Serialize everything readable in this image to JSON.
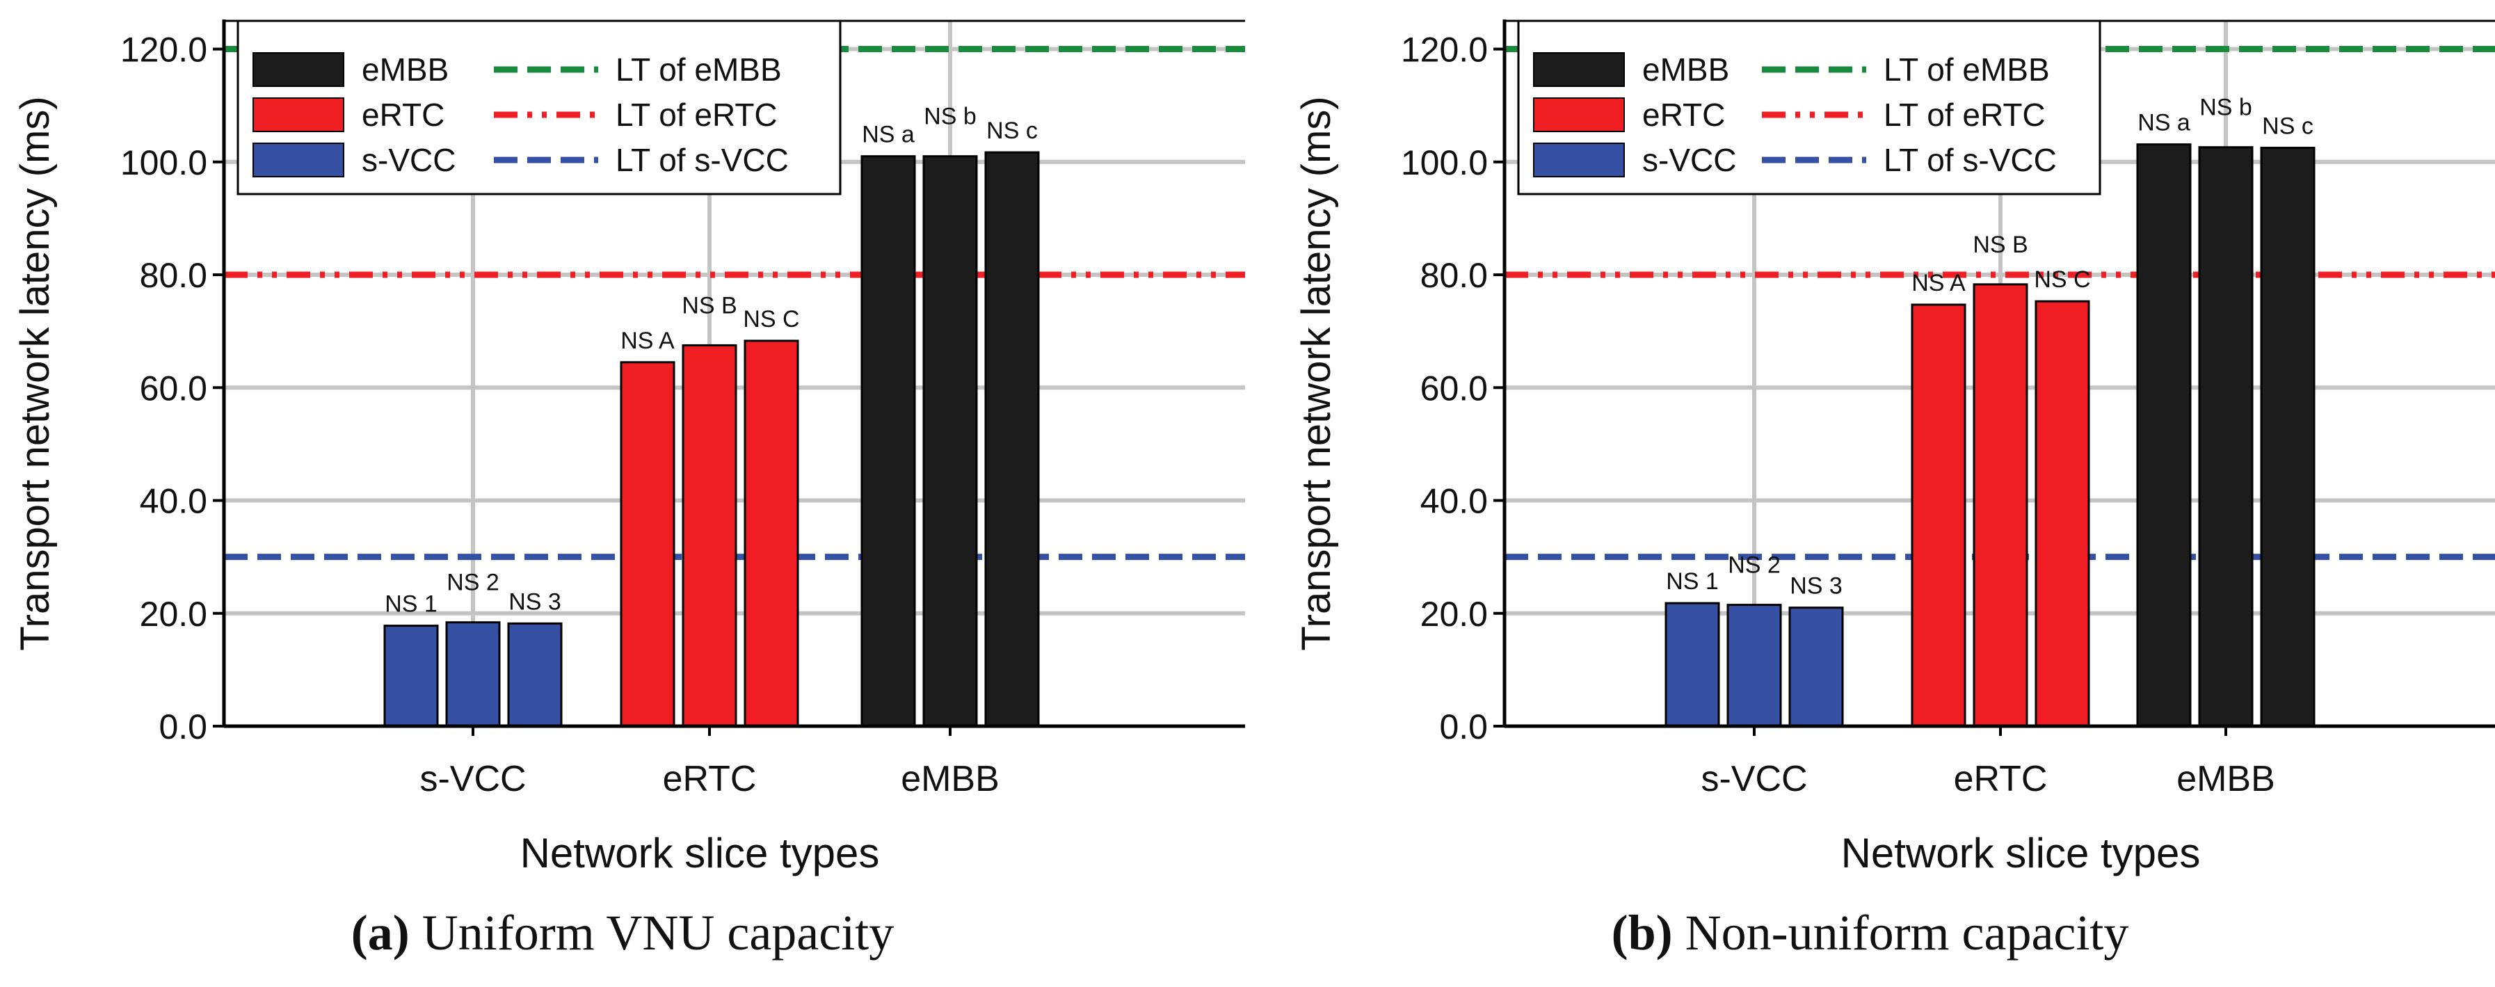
{
  "colors": {
    "eMBB": "#1c1c1c",
    "eRTC": "#ef1f24",
    "s-VCC": "#3651a4",
    "lt_eMBB": "#1a8a3c",
    "lt_eRTC": "#ef1f24",
    "lt_sVCC": "#3651a4",
    "grid": "#c4c4c4",
    "axis": "#000000",
    "text": "#111111"
  },
  "chart_data": [
    {
      "type": "bar",
      "panel": "a",
      "caption_letter": "(a)",
      "caption_text": " Uniform VNU capacity",
      "xlabel": "Network slice types",
      "ylabel": "Transport network latency (ms)",
      "ylim": [
        0,
        125
      ],
      "yticks": [
        0,
        20,
        40,
        60,
        80,
        100,
        120
      ],
      "ytick_labels": [
        "0.0",
        "20.0",
        "40.0",
        "60.0",
        "80.0",
        "100.0",
        "120.0"
      ],
      "grid": true,
      "legend_position": "top-left",
      "categories": [
        "s-VCC",
        "eRTC",
        "eMBB"
      ],
      "groups": [
        {
          "name": "s-VCC",
          "color_key": "s-VCC",
          "bars": [
            {
              "label": "NS 1",
              "value": 17.8
            },
            {
              "label": "NS 2",
              "value": 18.4
            },
            {
              "label": "NS 3",
              "value": 18.2
            }
          ]
        },
        {
          "name": "eRTC",
          "color_key": "eRTC",
          "bars": [
            {
              "label": "NS A",
              "value": 64.5
            },
            {
              "label": "NS B",
              "value": 67.5
            },
            {
              "label": "NS C",
              "value": 68.3
            }
          ]
        },
        {
          "name": "eMBB",
          "color_key": "eMBB",
          "bars": [
            {
              "label": "NS a",
              "value": 101.0
            },
            {
              "label": "NS b",
              "value": 101.0
            },
            {
              "label": "NS c",
              "value": 101.7
            }
          ]
        }
      ],
      "latency_thresholds": [
        {
          "label": "LT of eMBB",
          "value": 120,
          "color_key": "lt_eMBB",
          "style": "dash"
        },
        {
          "label": "LT of eRTC",
          "value": 80,
          "color_key": "lt_eRTC",
          "style": "dash-dot-dot"
        },
        {
          "label": "LT of s-VCC",
          "value": 30,
          "color_key": "lt_sVCC",
          "style": "dash"
        }
      ],
      "legend_bars": [
        "eMBB",
        "eRTC",
        "s-VCC"
      ]
    },
    {
      "type": "bar",
      "panel": "b",
      "caption_letter": "(b)",
      "caption_text": " Non-uniform capacity",
      "xlabel": "Network slice types",
      "ylabel": "Transport network latency (ms)",
      "ylim": [
        0,
        125
      ],
      "yticks": [
        0,
        20,
        40,
        60,
        80,
        100,
        120
      ],
      "ytick_labels": [
        "0.0",
        "20.0",
        "40.0",
        "60.0",
        "80.0",
        "100.0",
        "120.0"
      ],
      "grid": true,
      "legend_position": "top-left",
      "categories": [
        "s-VCC",
        "eRTC",
        "eMBB"
      ],
      "groups": [
        {
          "name": "s-VCC",
          "color_key": "s-VCC",
          "bars": [
            {
              "label": "NS 1",
              "value": 21.8
            },
            {
              "label": "NS 2",
              "value": 21.5
            },
            {
              "label": "NS 3",
              "value": 21.0
            }
          ]
        },
        {
          "name": "eRTC",
          "color_key": "eRTC",
          "bars": [
            {
              "label": "NS A",
              "value": 74.7
            },
            {
              "label": "NS B",
              "value": 78.3
            },
            {
              "label": "NS C",
              "value": 75.3
            }
          ]
        },
        {
          "name": "eMBB",
          "color_key": "eMBB",
          "bars": [
            {
              "label": "NS a",
              "value": 103.1
            },
            {
              "label": "NS b",
              "value": 102.6
            },
            {
              "label": "NS c",
              "value": 102.5
            }
          ]
        }
      ],
      "latency_thresholds": [
        {
          "label": "LT of eMBB",
          "value": 120,
          "color_key": "lt_eMBB",
          "style": "dash"
        },
        {
          "label": "LT of eRTC",
          "value": 80,
          "color_key": "lt_eRTC",
          "style": "dash-dot-dot"
        },
        {
          "label": "LT of s-VCC",
          "value": 30,
          "color_key": "lt_sVCC",
          "style": "dash"
        }
      ],
      "legend_bars": [
        "eMBB",
        "eRTC",
        "s-VCC"
      ]
    }
  ]
}
